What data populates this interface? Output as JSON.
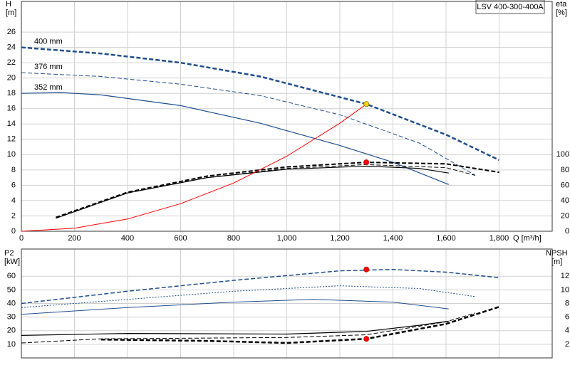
{
  "chart_data": [
    {
      "type": "line",
      "title": "LSV 400-300-400A",
      "y_label": "H",
      "y_unit": "[m]",
      "y2_label": "eta",
      "y2_unit": "[%]",
      "x_label": "Q [m³/h]",
      "xlim": [
        0,
        2000
      ],
      "ylim": [
        0,
        30
      ],
      "y2lim": [
        0,
        300
      ],
      "grid": true,
      "xticks": [
        0,
        200,
        400,
        600,
        800,
        {
          "value": 1000,
          "label": "1,000"
        },
        {
          "value": 1200,
          "label": "1,200"
        },
        {
          "value": 1400,
          "label": "1,400"
        },
        {
          "value": 1600,
          "label": "1,600"
        },
        {
          "value": 1800,
          "label": "1,800"
        }
      ],
      "yticks": [
        0,
        2,
        4,
        6,
        8,
        10,
        12,
        14,
        16,
        18,
        20,
        22,
        24,
        26
      ],
      "y2ticks": [
        0,
        20,
        40,
        60,
        80,
        100
      ],
      "series": [
        {
          "name": "400 mm",
          "color": "#1f4e8c",
          "style": "dashed",
          "width": 2.5,
          "x": [
            0,
            300,
            600,
            900,
            1300,
            1600,
            1800
          ],
          "values": [
            24,
            23.2,
            22,
            20.2,
            16.6,
            12.6,
            9.3
          ]
        },
        {
          "name": "376 mm",
          "color": "#1f4e8c",
          "style": "dashed",
          "width": 1,
          "x": [
            0,
            300,
            600,
            900,
            1200,
            1500,
            1710
          ],
          "values": [
            20.7,
            20.2,
            19.2,
            17.7,
            15.2,
            11.5,
            7.3
          ]
        },
        {
          "name": "352 mm",
          "color": "#1f4e8c",
          "style": "solid",
          "width": 1.2,
          "x": [
            0,
            150,
            300,
            600,
            900,
            1200,
            1400,
            1610
          ],
          "values": [
            18,
            18.1,
            17.8,
            16.4,
            14.1,
            11.2,
            9,
            6.1
          ]
        },
        {
          "color": "#000000",
          "style": "dashed",
          "width": 2,
          "axis": "y2",
          "x": [
            130,
            400,
            700,
            1000,
            1300,
            1600,
            1800
          ],
          "values": [
            18,
            51,
            72,
            84,
            90,
            88,
            77
          ]
        },
        {
          "color": "#000000",
          "style": "dashed",
          "width": 1,
          "axis": "y2",
          "x": [
            130,
            400,
            700,
            1000,
            1300,
            1600,
            1710
          ],
          "values": [
            17,
            50,
            70,
            82,
            87,
            83,
            73
          ]
        },
        {
          "color": "#000000",
          "style": "solid",
          "width": 1.2,
          "axis": "y2",
          "x": [
            130,
            400,
            700,
            1000,
            1300,
            1500,
            1610
          ],
          "values": [
            17,
            50,
            70,
            81,
            85,
            82,
            76
          ]
        },
        {
          "color": "#ff0000",
          "style": "solid",
          "width": 1,
          "x": [
            0,
            200,
            400,
            600,
            800,
            1000,
            1200,
            1300
          ],
          "values": [
            0,
            0.4,
            1.6,
            3.6,
            6.3,
            9.8,
            14.1,
            16.6
          ]
        }
      ],
      "points": [
        {
          "x": 1300,
          "y": 16.6,
          "color": "#ffd700"
        },
        {
          "x": 1300,
          "y": 90,
          "axis": "y2",
          "color": "#ff0000"
        }
      ]
    },
    {
      "type": "line",
      "y_label": "P2",
      "y_unit": "[kW]",
      "y2_label": "NPSH",
      "y2_unit": "[m]",
      "xlim": [
        0,
        2000
      ],
      "ylim": [
        0,
        80
      ],
      "y2lim": [
        0,
        16
      ],
      "grid": true,
      "yticks": [
        10,
        20,
        30,
        40,
        50,
        60
      ],
      "y2ticks": [
        2,
        4,
        6,
        8,
        10,
        12
      ],
      "series": [
        {
          "color": "#1f4e8c",
          "style": "dashed",
          "width": 1.5,
          "x": [
            0,
            400,
            800,
            1200,
            1400,
            1600,
            1800
          ],
          "values": [
            40,
            49,
            57,
            64,
            65,
            63,
            59
          ]
        },
        {
          "color": "#1f4e8c",
          "style": "dotted",
          "width": 1,
          "x": [
            0,
            400,
            800,
            1200,
            1500,
            1710
          ],
          "values": [
            37,
            43,
            49,
            53,
            51,
            45
          ]
        },
        {
          "color": "#1f4e8c",
          "style": "solid",
          "width": 1,
          "x": [
            0,
            400,
            800,
            1100,
            1400,
            1610
          ],
          "values": [
            32,
            37,
            41,
            43,
            41,
            36
          ]
        },
        {
          "color": "#000000",
          "style": "dashed",
          "width": 2.5,
          "axis": "y2",
          "x": [
            300,
            700,
            1000,
            1300,
            1600,
            1800
          ],
          "values": [
            2.7,
            2.5,
            2.2,
            2.8,
            5,
            7.5
          ]
        },
        {
          "color": "#000000",
          "style": "dashed",
          "width": 1,
          "axis": "y2",
          "x": [
            0,
            300,
            1000,
            1300,
            1600,
            1710
          ],
          "values": [
            2.2,
            2.8,
            3,
            3.4,
            5.3,
            6.6
          ]
        },
        {
          "color": "#000000",
          "style": "solid",
          "width": 1.2,
          "axis": "y2",
          "x": [
            0,
            400,
            1000,
            1300,
            1500,
            1610
          ],
          "values": [
            3.3,
            3.6,
            3.5,
            3.9,
            4.8,
            5.4
          ]
        }
      ],
      "points": [
        {
          "x": 1300,
          "y": 65,
          "color": "#ff0000"
        },
        {
          "x": 1300,
          "y": 2.8,
          "axis": "y2",
          "color": "#ff0000"
        }
      ]
    }
  ]
}
